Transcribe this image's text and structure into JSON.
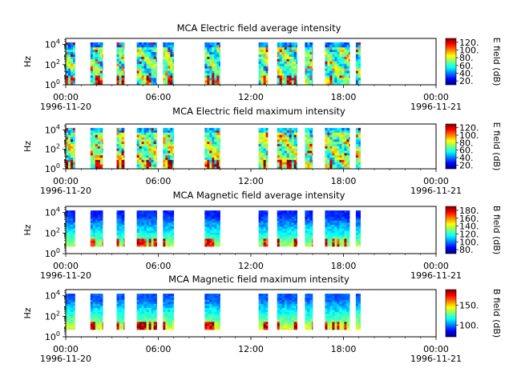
{
  "colors": {
    "jet": [
      "#00007f",
      "#0000ff",
      "#007fff",
      "#00ffff",
      "#7fff7f",
      "#ffff00",
      "#ff7f00",
      "#ff0000",
      "#7f0000"
    ]
  },
  "chart_data": [
    {
      "type": "heatmap",
      "title": "MCA  Electric field average intensity",
      "ylabel": "Hz",
      "y_scale": "log",
      "y_ticks": [
        "10^0",
        "10^2",
        "10^4"
      ],
      "x_ticks": [
        "00:00",
        "06:00",
        "12:00",
        "18:00",
        "00:00"
      ],
      "x_start_date": "1996-11-20",
      "x_end_date": "1996-11-21",
      "colorbar_label": "E field (dB)",
      "colorbar_ticks": [
        "20.",
        "40.",
        "60.",
        "80.",
        "100.",
        "120."
      ],
      "colorbar_range": [
        10,
        130
      ],
      "data_segments_hours": [
        [
          0.0,
          0.6
        ],
        [
          1.6,
          2.4
        ],
        [
          3.3,
          3.8
        ],
        [
          4.6,
          5.9
        ],
        [
          6.3,
          7.0
        ],
        [
          9.0,
          10.0
        ],
        [
          12.5,
          13.1
        ],
        [
          13.7,
          15.0
        ],
        [
          15.5,
          16.0
        ],
        [
          16.8,
          18.4
        ],
        [
          18.8,
          19.1
        ]
      ]
    },
    {
      "type": "heatmap",
      "title": "MCA  Electric field maximum intensity",
      "ylabel": "Hz",
      "y_scale": "log",
      "y_ticks": [
        "10^0",
        "10^2",
        "10^4"
      ],
      "x_ticks": [
        "00:00",
        "06:00",
        "12:00",
        "18:00",
        "00:00"
      ],
      "x_start_date": "1996-11-20",
      "x_end_date": "1996-11-21",
      "colorbar_label": "E field (dB)",
      "colorbar_ticks": [
        "20.",
        "40.",
        "60.",
        "80.",
        "100.",
        "120."
      ],
      "colorbar_range": [
        10,
        130
      ],
      "data_segments_hours": [
        [
          0.0,
          0.6
        ],
        [
          1.6,
          2.4
        ],
        [
          3.3,
          3.8
        ],
        [
          4.6,
          5.9
        ],
        [
          6.3,
          7.0
        ],
        [
          9.0,
          10.0
        ],
        [
          12.5,
          13.1
        ],
        [
          13.7,
          15.0
        ],
        [
          15.5,
          16.0
        ],
        [
          16.8,
          18.4
        ],
        [
          18.8,
          19.1
        ]
      ]
    },
    {
      "type": "heatmap",
      "title": "MCA  Magnetic field average intensity",
      "ylabel": "Hz",
      "y_scale": "log",
      "y_ticks": [
        "10^0",
        "10^2",
        "10^4"
      ],
      "x_ticks": [
        "00:00",
        "06:00",
        "12:00",
        "18:00",
        "00:00"
      ],
      "x_start_date": "1996-11-20",
      "x_end_date": "1996-11-21",
      "colorbar_label": "B field (dB)",
      "colorbar_ticks": [
        "80.",
        "100.",
        "120.",
        "140.",
        "160.",
        "180."
      ],
      "colorbar_range": [
        70,
        190
      ],
      "data_segments_hours": [
        [
          0.0,
          0.6
        ],
        [
          1.6,
          2.4
        ],
        [
          3.3,
          3.8
        ],
        [
          4.6,
          5.9
        ],
        [
          6.3,
          7.0
        ],
        [
          9.0,
          10.0
        ],
        [
          12.5,
          13.1
        ],
        [
          13.7,
          15.0
        ],
        [
          15.5,
          16.0
        ],
        [
          16.8,
          18.4
        ],
        [
          18.8,
          19.1
        ]
      ]
    },
    {
      "type": "heatmap",
      "title": "MCA  Magnetic field maximum intensity",
      "ylabel": "Hz",
      "y_scale": "log",
      "y_ticks": [
        "10^0",
        "10^2",
        "10^4"
      ],
      "x_ticks": [
        "00:00",
        "06:00",
        "12:00",
        "18:00",
        "00:00"
      ],
      "x_start_date": "1996-11-20",
      "x_end_date": "1996-11-21",
      "colorbar_label": "B field (dB)",
      "colorbar_ticks": [
        "100.",
        "150."
      ],
      "colorbar_range": [
        70,
        190
      ],
      "data_segments_hours": [
        [
          0.0,
          0.6
        ],
        [
          1.6,
          2.4
        ],
        [
          3.3,
          3.8
        ],
        [
          4.6,
          5.9
        ],
        [
          6.3,
          7.0
        ],
        [
          9.0,
          10.0
        ],
        [
          12.5,
          13.1
        ],
        [
          13.7,
          15.0
        ],
        [
          15.5,
          16.0
        ],
        [
          16.8,
          18.4
        ],
        [
          18.8,
          19.1
        ]
      ]
    }
  ]
}
